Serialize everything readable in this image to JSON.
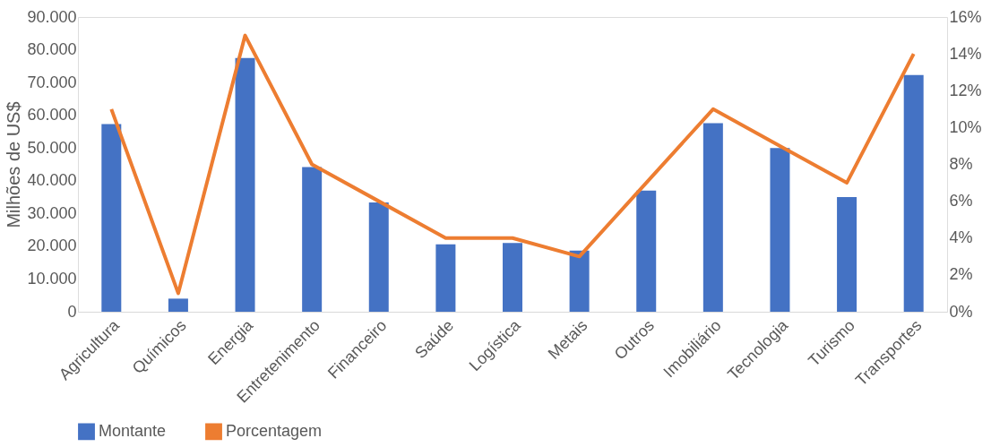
{
  "chart_data": {
    "type": "bar",
    "ylabel": "Milhões de US$",
    "categories": [
      "Agricultura",
      "Químicos",
      "Energia",
      "Entretenimento",
      "Financeiro",
      "Saúde",
      "Logística",
      "Metais",
      "Outros",
      "Imobiliário",
      "Tecnologia",
      "Turismo",
      "Transportes"
    ],
    "series": [
      {
        "name": "Montante",
        "color": "#4472c4",
        "values": [
          57300,
          4000,
          77500,
          44200,
          33400,
          20600,
          21000,
          18700,
          37000,
          57600,
          50000,
          35000,
          72300
        ]
      },
      {
        "name": "Porcentagem",
        "type": "line",
        "axis": "y2",
        "color": "#ed7d31",
        "values": [
          11,
          1,
          15,
          8,
          6,
          4,
          4,
          3,
          7,
          11,
          9,
          7,
          14
        ]
      }
    ],
    "ylim": [
      0,
      90000
    ],
    "yticks": [
      0,
      {
        "value": 10000,
        "label": "10.000"
      },
      {
        "value": 20000,
        "label": "20.000"
      },
      {
        "value": 30000,
        "label": "30.000"
      },
      {
        "value": 40000,
        "label": "40.000"
      },
      {
        "value": 50000,
        "label": "50.000"
      },
      {
        "value": 60000,
        "label": "60.000"
      },
      {
        "value": 70000,
        "label": "70.000"
      },
      {
        "value": 80000,
        "label": "80.000"
      },
      {
        "value": 90000,
        "label": "90.000"
      }
    ],
    "y2lim": [
      0,
      16
    ],
    "y2ticks": [
      {
        "value": 0,
        "label": "0%"
      },
      {
        "value": 2,
        "label": "2%"
      },
      {
        "value": 4,
        "label": "4%"
      },
      {
        "value": 6,
        "label": "6%"
      },
      {
        "value": 8,
        "label": "8%"
      },
      {
        "value": 10,
        "label": "10%"
      },
      {
        "value": 12,
        "label": "12%"
      },
      {
        "value": 14,
        "label": "14%"
      },
      {
        "value": 16,
        "label": "16%"
      }
    ],
    "grid": false,
    "legend": "bottom",
    "line_style": "solid",
    "marker": "none"
  }
}
